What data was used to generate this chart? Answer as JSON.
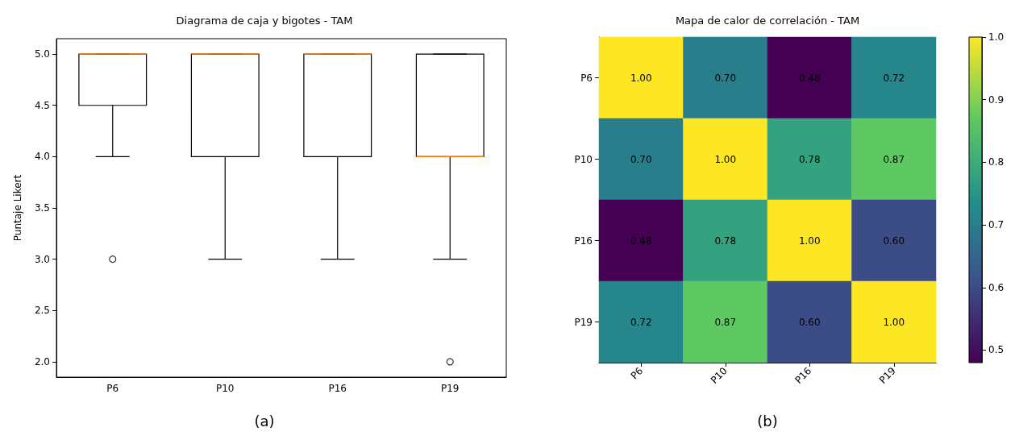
{
  "chart_data": [
    {
      "type": "box",
      "title": "Diagrama de caja y bigotes - TAM",
      "ylabel": "Puntaje Likert",
      "categories": [
        "P6",
        "P10",
        "P16",
        "P19"
      ],
      "boxes": [
        {
          "low": 4,
          "q1": 4.5,
          "median": 5,
          "q3": 5,
          "high": 5,
          "outliers": [
            3
          ]
        },
        {
          "low": 3,
          "q1": 4,
          "median": 5,
          "q3": 5,
          "high": 5
        },
        {
          "low": 3,
          "q1": 4,
          "median": 5,
          "q3": 5,
          "high": 5
        },
        {
          "low": 3,
          "q1": 4,
          "median": 4,
          "q3": 5,
          "high": 5,
          "outliers": [
            2
          ]
        }
      ],
      "ylim": [
        1.85,
        5.15
      ],
      "yticks": [
        {
          "value": 2,
          "label": "2.0"
        },
        {
          "value": 2.5,
          "label": "2.5"
        },
        {
          "value": 3,
          "label": "3.0"
        },
        {
          "value": 3.5,
          "label": "3.5"
        },
        {
          "value": 4,
          "label": "4.0"
        },
        {
          "value": 4.5,
          "label": "4.5"
        },
        {
          "value": 5,
          "label": "5.0"
        }
      ],
      "grid": false,
      "annotations": [
        "(a)"
      ]
    },
    {
      "type": "heatmap",
      "title": "Mapa de calor de correlación - TAM",
      "categories": [
        "P6",
        "P10",
        "P16",
        "P19"
      ],
      "y_categories": [
        "P6",
        "P10",
        "P16",
        "P19"
      ],
      "cells": [
        [
          1.0,
          0.7,
          0.48,
          0.72
        ],
        [
          0.7,
          1.0,
          0.78,
          0.87
        ],
        [
          0.48,
          0.78,
          1.0,
          0.6
        ],
        [
          0.72,
          0.87,
          0.6,
          1.0
        ]
      ],
      "cell_labels": [
        [
          "1.00",
          "0.70",
          "0.48",
          "0.72"
        ],
        [
          "0.70",
          "1.00",
          "0.78",
          "0.87"
        ],
        [
          "0.48",
          "0.78",
          "1.00",
          "0.60"
        ],
        [
          "0.72",
          "0.87",
          "0.60",
          "1.00"
        ]
      ],
      "clim": [
        0.48,
        1.0
      ],
      "cticks": [
        {
          "value": 0.5,
          "label": "0.5"
        },
        {
          "value": 0.6,
          "label": "0.6"
        },
        {
          "value": 0.7,
          "label": "0.7"
        },
        {
          "value": 0.8,
          "label": "0.8"
        },
        {
          "value": 0.9,
          "label": "0.9"
        },
        {
          "value": 1.0,
          "label": "1.0"
        }
      ],
      "annotations": [
        "(b)"
      ]
    }
  ]
}
